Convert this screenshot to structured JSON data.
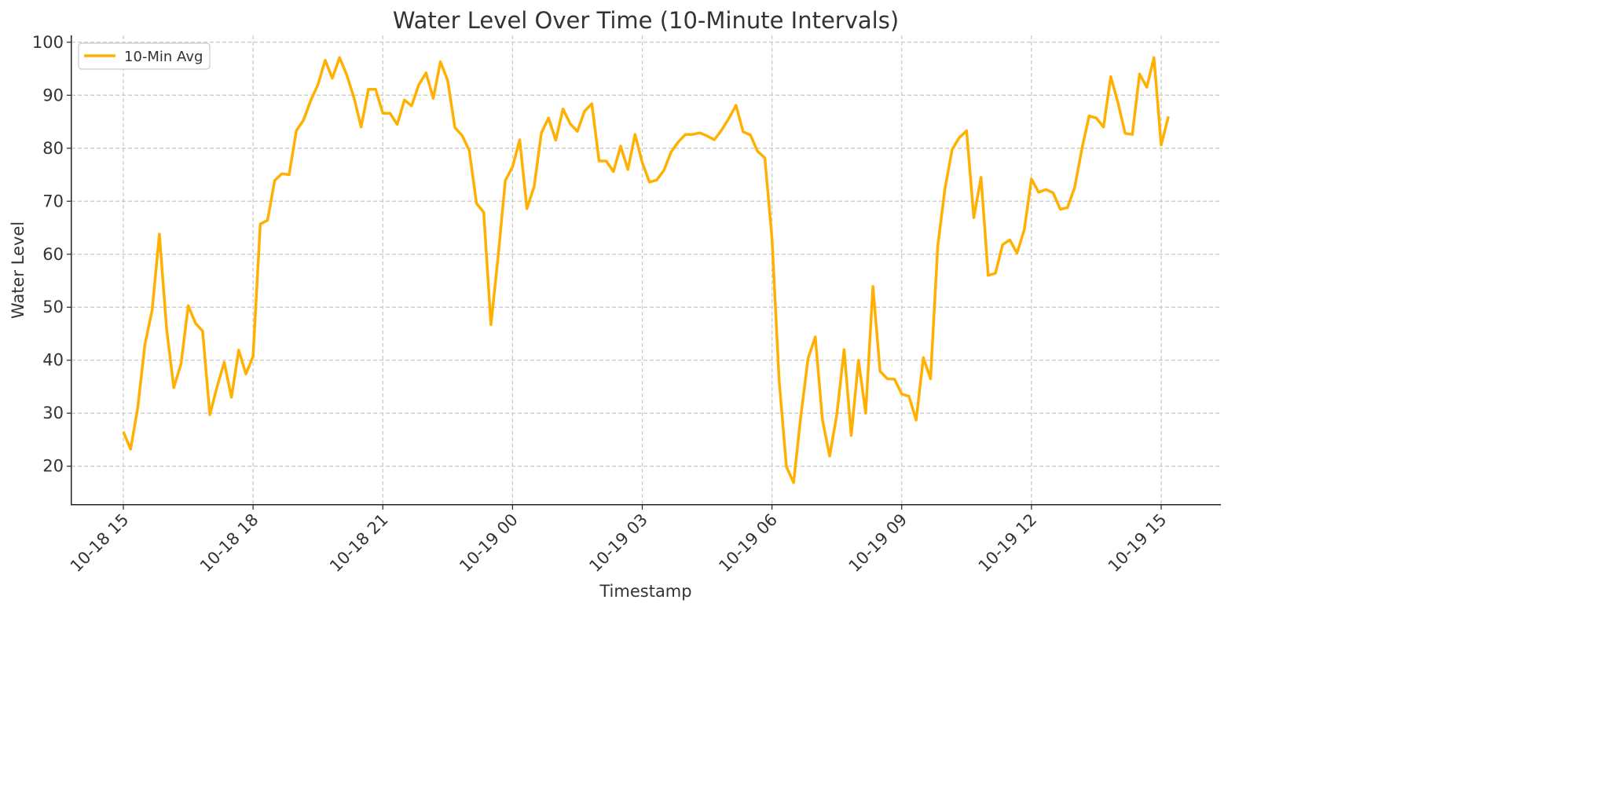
{
  "chart_data": {
    "type": "line",
    "title": "Water Level Over Time (10-Minute Intervals)",
    "xlabel": "Timestamp",
    "ylabel": "Water Level",
    "ylim": [
      12.7,
      101.3
    ],
    "yticks": [
      20,
      30,
      40,
      50,
      60,
      70,
      80,
      90,
      100
    ],
    "xticks": [
      "10-18 15",
      "10-18 18",
      "10-18 21",
      "10-19 00",
      "10-19 03",
      "10-19 06",
      "10-19 09",
      "10-19 12",
      "10-19 15"
    ],
    "grid": true,
    "legend_position": "top-left",
    "series": [
      {
        "name": "10-Min Avg",
        "color": "#FFB000",
        "x": [
          "10-18 15:00",
          "10-18 15:10",
          "10-18 15:20",
          "10-18 15:30",
          "10-18 15:40",
          "10-18 15:50",
          "10-18 16:00",
          "10-18 16:10",
          "10-18 16:20",
          "10-18 16:30",
          "10-18 16:40",
          "10-18 16:50",
          "10-18 17:00",
          "10-18 17:10",
          "10-18 17:20",
          "10-18 17:30",
          "10-18 17:40",
          "10-18 17:50",
          "10-18 18:00",
          "10-18 18:10",
          "10-18 18:20",
          "10-18 18:30",
          "10-18 18:40",
          "10-18 18:50",
          "10-18 19:00",
          "10-18 19:10",
          "10-18 19:20",
          "10-18 19:30",
          "10-18 19:40",
          "10-18 19:50",
          "10-18 20:00",
          "10-18 20:10",
          "10-18 20:20",
          "10-18 20:30",
          "10-18 20:40",
          "10-18 20:50",
          "10-18 21:00",
          "10-18 21:10",
          "10-18 21:20",
          "10-18 21:30",
          "10-18 21:40",
          "10-18 21:50",
          "10-18 22:00",
          "10-18 22:10",
          "10-18 22:20",
          "10-18 22:30",
          "10-18 22:40",
          "10-18 22:50",
          "10-18 23:00",
          "10-18 23:10",
          "10-18 23:20",
          "10-18 23:30",
          "10-18 23:40",
          "10-18 23:50",
          "10-19 00:00",
          "10-19 00:10",
          "10-19 00:20",
          "10-19 00:30",
          "10-19 00:40",
          "10-19 00:50",
          "10-19 01:00",
          "10-19 01:10",
          "10-19 01:20",
          "10-19 01:30",
          "10-19 01:40",
          "10-19 01:50",
          "10-19 02:00",
          "10-19 02:10",
          "10-19 02:20",
          "10-19 02:30",
          "10-19 02:40",
          "10-19 02:50",
          "10-19 03:00",
          "10-19 03:10",
          "10-19 03:20",
          "10-19 03:30",
          "10-19 03:40",
          "10-19 03:50",
          "10-19 04:00",
          "10-19 04:10",
          "10-19 04:20",
          "10-19 04:30",
          "10-19 04:40",
          "10-19 04:50",
          "10-19 05:00",
          "10-19 05:10",
          "10-19 05:20",
          "10-19 05:30",
          "10-19 05:40",
          "10-19 05:50",
          "10-19 06:00",
          "10-19 06:10",
          "10-19 06:20",
          "10-19 06:30",
          "10-19 06:40",
          "10-19 06:50",
          "10-19 07:00",
          "10-19 07:10",
          "10-19 07:20",
          "10-19 07:30",
          "10-19 07:40",
          "10-19 07:50",
          "10-19 08:00",
          "10-19 08:10",
          "10-19 08:20",
          "10-19 08:30",
          "10-19 08:40",
          "10-19 08:50",
          "10-19 09:00",
          "10-19 09:10",
          "10-19 09:20",
          "10-19 09:30",
          "10-19 09:40",
          "10-19 09:50",
          "10-19 10:00",
          "10-19 10:10",
          "10-19 10:20",
          "10-19 10:30",
          "10-19 10:40",
          "10-19 10:50",
          "10-19 11:00",
          "10-19 11:10",
          "10-19 11:20",
          "10-19 11:30",
          "10-19 11:40",
          "10-19 11:50",
          "10-19 12:00",
          "10-19 12:10",
          "10-19 12:20",
          "10-19 12:30",
          "10-19 12:40",
          "10-19 12:50",
          "10-19 13:00",
          "10-19 13:10",
          "10-19 13:20",
          "10-19 13:30",
          "10-19 13:40",
          "10-19 13:50",
          "10-19 14:00",
          "10-19 14:10",
          "10-19 14:20",
          "10-19 14:30",
          "10-19 14:40",
          "10-19 14:50",
          "10-19 15:00",
          "10-19 15:10"
        ],
        "values": [
          26.5,
          23.2,
          31,
          43,
          49.5,
          63.8,
          46,
          34.8,
          39.3,
          50.3,
          47,
          45.5,
          29.7,
          35,
          39.6,
          33,
          41.9,
          37.4,
          40.7,
          65.7,
          66.4,
          73.9,
          75.2,
          75,
          83.3,
          85.3,
          89,
          92,
          96.6,
          93.2,
          97.1,
          93.8,
          89.5,
          84,
          91.1,
          91.1,
          86.6,
          86.6,
          84.5,
          89.1,
          88,
          92,
          94.2,
          89.4,
          96.3,
          92.8,
          83.9,
          82.4,
          79.6,
          69.6,
          67.9,
          46.7,
          59.5,
          73.9,
          76.5,
          81.6,
          68.6,
          72.8,
          82.9,
          85.7,
          81.5,
          87.4,
          84.6,
          83.2,
          87,
          88.4,
          77.6,
          77.6,
          75.6,
          80.4,
          76,
          82.6,
          77.3,
          73.6,
          74,
          75.8,
          79.3,
          81.2,
          82.6,
          82.6,
          82.9,
          82.3,
          81.6,
          83.4,
          85.6,
          88.1,
          83.1,
          82.5,
          79.4,
          78.2,
          63,
          36,
          19.9,
          16.9,
          29.4,
          40.3,
          44.4,
          28.8,
          21.9,
          29.8,
          42,
          25.8,
          40,
          30,
          53.9,
          37.9,
          36.5,
          36.4,
          33.6,
          33.2,
          28.7,
          40.5,
          36.5,
          61.5,
          72.4,
          79.8,
          82,
          83.3,
          66.9,
          74.5,
          56,
          56.4,
          61.8,
          62.7,
          60.2,
          64.6,
          74.2,
          71.7,
          72.2,
          71.6,
          68.5,
          68.8,
          72.6,
          79.9,
          86.1,
          85.7,
          84,
          93.5,
          88.6,
          82.8,
          82.6,
          94,
          91.5,
          97.1,
          80.6,
          86
        ]
      }
    ]
  }
}
